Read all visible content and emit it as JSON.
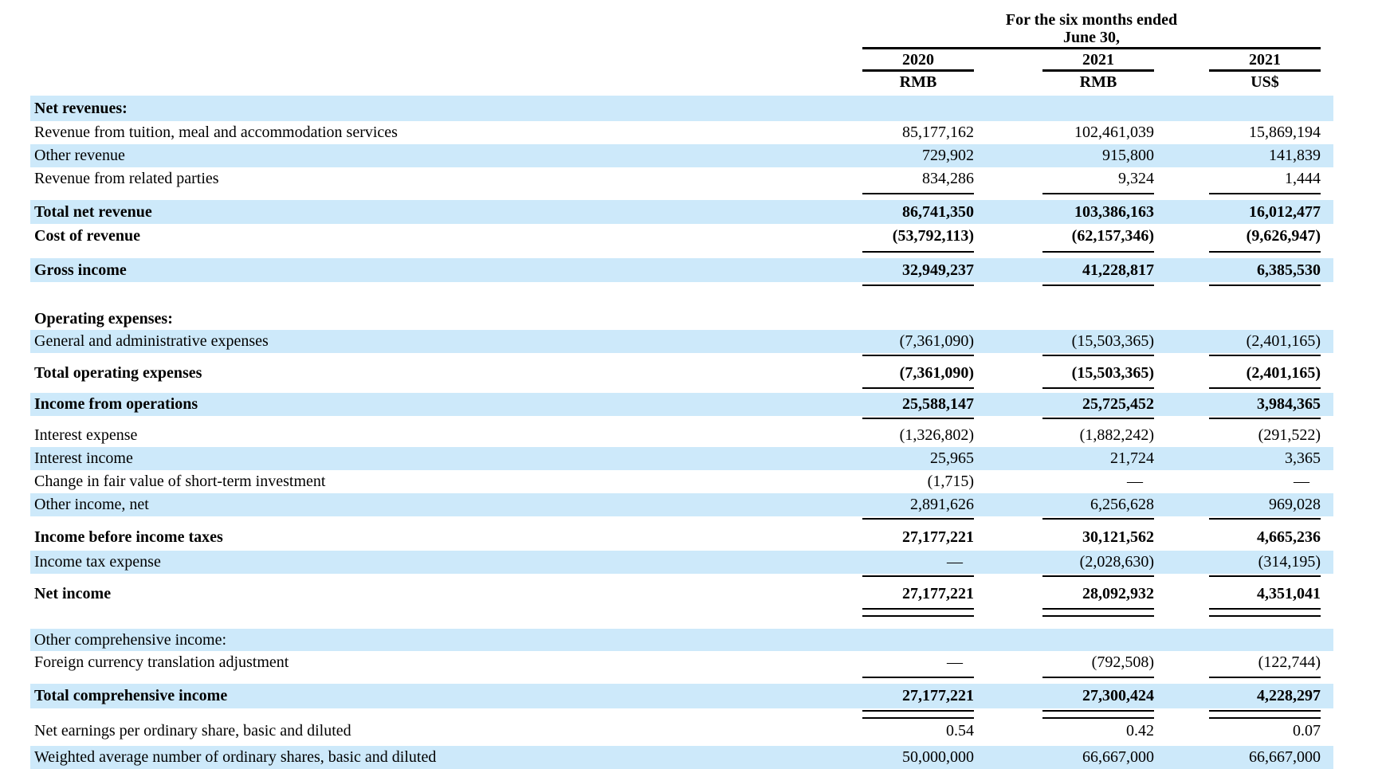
{
  "header": {
    "period_title_line1": "For the six months ended",
    "period_title_line2": "June 30,",
    "columns": [
      {
        "year": "2020",
        "currency": "RMB"
      },
      {
        "year": "2021",
        "currency": "RMB"
      },
      {
        "year": "2021",
        "currency": "US$"
      }
    ]
  },
  "colors": {
    "row_highlight": "#cde9fa",
    "text": "#000000",
    "rule": "#000000"
  },
  "rows": [
    {
      "label": "Net revenues:",
      "v1": "",
      "v2": "",
      "v3": ""
    },
    {
      "label": "Revenue from tuition, meal and accommodation services",
      "v1": "85,177,162",
      "v2": "102,461,039",
      "v3": "15,869,194"
    },
    {
      "label": "Other revenue",
      "v1": "729,902",
      "v2": "915,800",
      "v3": "141,839"
    },
    {
      "label": "Revenue from related parties",
      "v1": "834,286",
      "v2": "9,324",
      "v3": "1,444"
    },
    {
      "label": "Total net revenue",
      "v1": "86,741,350",
      "v2": "103,386,163",
      "v3": "16,012,477"
    },
    {
      "label": "Cost of revenue",
      "v1": "(53,792,113)",
      "v2": "(62,157,346)",
      "v3": "(9,626,947)"
    },
    {
      "label": "Gross income",
      "v1": "32,949,237",
      "v2": "41,228,817",
      "v3": "6,385,530"
    },
    {
      "label": "Operating expenses:",
      "v1": "",
      "v2": "",
      "v3": ""
    },
    {
      "label": "General and administrative expenses",
      "v1": "(7,361,090)",
      "v2": "(15,503,365)",
      "v3": "(2,401,165)"
    },
    {
      "label": "Total operating expenses",
      "v1": "(7,361,090)",
      "v2": "(15,503,365)",
      "v3": "(2,401,165)"
    },
    {
      "label": "Income from operations",
      "v1": "25,588,147",
      "v2": "25,725,452",
      "v3": "3,984,365"
    },
    {
      "label": "Interest expense",
      "v1": "(1,326,802)",
      "v2": "(1,882,242)",
      "v3": "(291,522)"
    },
    {
      "label": "Interest income",
      "v1": "25,965",
      "v2": "21,724",
      "v3": "3,365"
    },
    {
      "label": "Change in fair value of short-term investment",
      "v1": "(1,715)",
      "v2": "—",
      "v3": "—"
    },
    {
      "label": "Other income, net",
      "v1": "2,891,626",
      "v2": "6,256,628",
      "v3": "969,028"
    },
    {
      "label": "Income before income taxes",
      "v1": "27,177,221",
      "v2": "30,121,562",
      "v3": "4,665,236"
    },
    {
      "label": "Income tax expense",
      "v1": "—",
      "v2": "(2,028,630)",
      "v3": "(314,195)"
    },
    {
      "label": "Net income",
      "v1": "27,177,221",
      "v2": "28,092,932",
      "v3": "4,351,041"
    },
    {
      "label": "Other comprehensive income:",
      "v1": "",
      "v2": "",
      "v3": ""
    },
    {
      "label": "Foreign currency translation adjustment",
      "v1": "—",
      "v2": "(792,508)",
      "v3": "(122,744)"
    },
    {
      "label": "Total comprehensive income",
      "v1": "27,177,221",
      "v2": "27,300,424",
      "v3": "4,228,297"
    },
    {
      "label": "Net earnings per ordinary share, basic and diluted",
      "v1": "0.54",
      "v2": "0.42",
      "v3": "0.07"
    },
    {
      "label": "Weighted average number of ordinary shares, basic and diluted",
      "v1": "50,000,000",
      "v2": "66,667,000",
      "v3": "66,667,000"
    }
  ]
}
